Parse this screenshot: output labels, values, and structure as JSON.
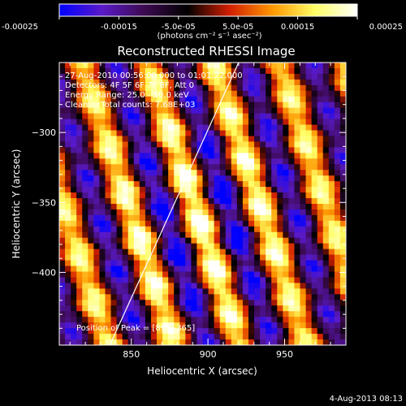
{
  "chart_data": {
    "type": "heatmap",
    "title": "Reconstructed RHESSI Image",
    "xlabel": "Heliocentric X (arcsec)",
    "ylabel": "Heliocentric Y (arcsec)",
    "xlim": [
      803,
      990
    ],
    "ylim": [
      -452,
      -250
    ],
    "x_ticks": [
      850,
      900,
      950
    ],
    "y_ticks": [
      -300,
      -350,
      -400
    ],
    "colorbar": {
      "min": -0.00025,
      "max": 0.00025,
      "ticks": [
        -0.00025,
        -0.00015,
        -5e-05,
        5e-05,
        0.00015,
        0.00025
      ],
      "tick_labels": [
        "-0.00025",
        "-0.00015",
        "-5.0e-05",
        "5.0e-05",
        "0.00015",
        "0.00025"
      ],
      "units": "(photons cm⁻² s⁻¹ asec⁻²)",
      "colormap": [
        "#0000ff",
        "#5a1ac8",
        "#3c0a50",
        "#000000",
        "#d21e00",
        "#ff9600",
        "#ffff64",
        "#ffffff"
      ]
    },
    "annotations": [
      "27-Aug-2010 00:56:00.000 to 01:01:22.000",
      "Detectors: 4F 5F 6F 7F 8F, Att 0",
      "Energy Range: 25.0 - 50.0 keV",
      "Clean     Total counts: 7.68E+03"
    ],
    "peak_label": "Position of Peak = [895,-365]",
    "limb_line": [
      [
        836,
        -452
      ],
      [
        920,
        -250
      ]
    ]
  },
  "footer": {
    "timestamp": "4-Aug-2013 08:13"
  }
}
